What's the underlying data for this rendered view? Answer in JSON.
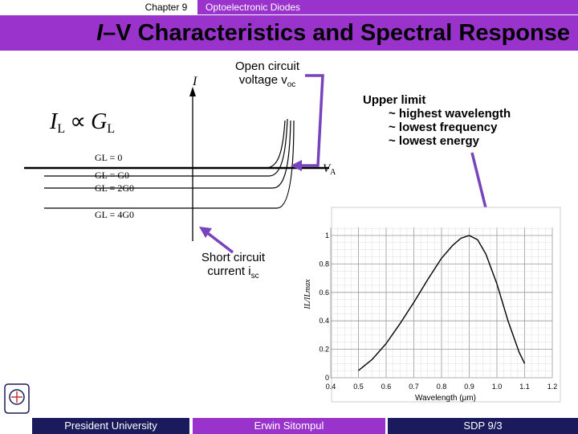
{
  "header": {
    "chapter": "Chapter 9",
    "topic": "Optoelectronic Diodes",
    "title_italic": "I",
    "title_rest": "–V Characteristics and Spectral Response"
  },
  "annotations": {
    "voc_line1": "Open circuit",
    "voc_line2": "voltage v",
    "voc_sub": "oc",
    "isc_line1": "Short circuit",
    "isc_line2": "current i",
    "isc_sub": "sc",
    "upper1": "Upper limit",
    "upper2": "~ highest  wavelength",
    "upper3": "~ lowest frequency",
    "upper4": "~ lowest energy"
  },
  "iv_plot": {
    "y_axis_label": "I",
    "x_axis_label": "V",
    "x_axis_sub": "A",
    "proportional_main": "I",
    "proportional_sub": "L",
    "proportional_symbol": "∝",
    "proportional_rhs": "G",
    "proportional_rhs_sub": "L",
    "curves": [
      "GL = 0",
      "GL = G0",
      "GL = 2G0",
      "GL = 4G0"
    ]
  },
  "chart_data": {
    "type": "line",
    "xlabel": "Wavelength (μm)",
    "ylabel": "IL/ILmax",
    "x_ticks": [
      "0.4",
      "0.5",
      "0.6",
      "0.7",
      "0.8",
      "0.9",
      "1.0",
      "1.1",
      "1.2"
    ],
    "y_ticks": [
      "0",
      "0.2",
      "0.4",
      "0.6",
      "0.8",
      "1"
    ],
    "xlim": [
      0.4,
      1.2
    ],
    "ylim": [
      0,
      1.0
    ],
    "grid": true,
    "series": [
      {
        "x": [
          0.5,
          0.55,
          0.6,
          0.65,
          0.7,
          0.75,
          0.8,
          0.84,
          0.87,
          0.9,
          0.93,
          0.96,
          1.0,
          1.04,
          1.08,
          1.1
        ],
        "y": [
          0.05,
          0.13,
          0.24,
          0.38,
          0.53,
          0.69,
          0.84,
          0.93,
          0.98,
          1.0,
          0.97,
          0.87,
          0.66,
          0.4,
          0.18,
          0.1
        ]
      }
    ]
  },
  "footer": {
    "left": "President University",
    "middle": "Erwin Sitompul",
    "right": "SDP 9/3"
  },
  "colors": {
    "accent": "#9933cc",
    "dark": "#1a1a5c",
    "arrow": "#7744bb"
  }
}
